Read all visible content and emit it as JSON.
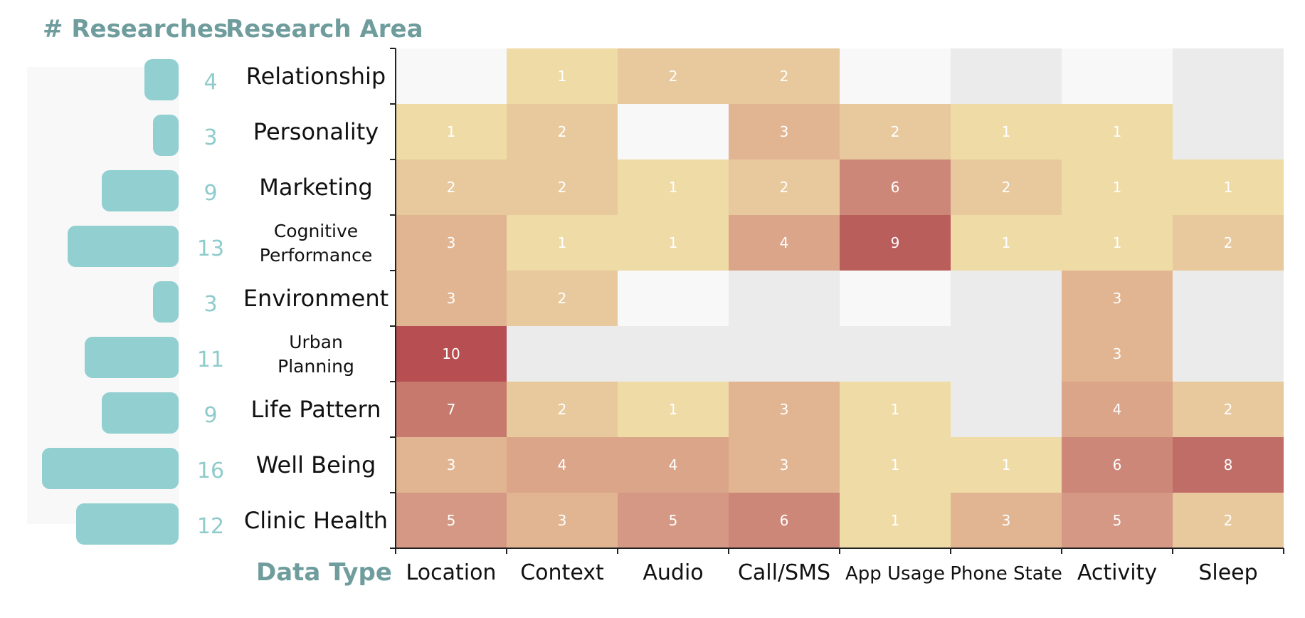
{
  "headers": {
    "researches": "# Researches",
    "research_area": "Research Area",
    "data_type": "Data Type"
  },
  "colors": {
    "bar": "#92cfd1",
    "bar_panel": "#f8f8f8",
    "header": "#6f9c9c",
    "count": "#8fcbcb",
    "empty_light": "#f8f8f8",
    "empty_dark": "#ebebeb",
    "scale": [
      "#efdba6",
      "#e8c99d",
      "#e2b592",
      "#dba58a",
      "#d49884",
      "#cc8778",
      "#c7796d",
      "#c06d68",
      "#ba5e5c",
      "#b74e51"
    ]
  },
  "chart_data": {
    "type": "heatmap",
    "xlabel": "Data Type",
    "ylabel": "Research Area",
    "rows": [
      {
        "label_lines": [
          "Relationship"
        ],
        "count": "4"
      },
      {
        "label_lines": [
          "Personality"
        ],
        "count": "3"
      },
      {
        "label_lines": [
          "Marketing"
        ],
        "count": "9"
      },
      {
        "label_lines": [
          "Cognitive",
          "Performance"
        ],
        "count": "13"
      },
      {
        "label_lines": [
          "Environment"
        ],
        "count": "3"
      },
      {
        "label_lines": [
          "Urban",
          "Planning"
        ],
        "count": "11"
      },
      {
        "label_lines": [
          "Life Pattern"
        ],
        "count": "9"
      },
      {
        "label_lines": [
          "Well Being"
        ],
        "count": "16"
      },
      {
        "label_lines": [
          "Clinic Health"
        ],
        "count": "12"
      }
    ],
    "columns": [
      "Location",
      "Context",
      "Audio",
      "Call/SMS",
      "App Usage",
      "Phone State",
      "Activity",
      "Sleep"
    ],
    "values": [
      [
        null,
        1,
        2,
        2,
        null,
        null,
        null,
        null
      ],
      [
        1,
        2,
        null,
        3,
        2,
        1,
        1,
        null
      ],
      [
        2,
        2,
        1,
        2,
        6,
        2,
        1,
        1
      ],
      [
        3,
        1,
        1,
        4,
        9,
        1,
        1,
        2
      ],
      [
        3,
        2,
        null,
        null,
        null,
        null,
        3,
        null
      ],
      [
        10,
        null,
        null,
        null,
        null,
        null,
        3,
        null
      ],
      [
        7,
        2,
        1,
        3,
        1,
        null,
        4,
        2
      ],
      [
        3,
        4,
        4,
        3,
        1,
        1,
        6,
        8
      ],
      [
        5,
        3,
        5,
        6,
        1,
        3,
        5,
        2
      ]
    ],
    "empty_shade": [
      [
        "light",
        null,
        null,
        null,
        "light",
        "dark",
        "light",
        "dark"
      ],
      [
        null,
        null,
        "light",
        null,
        null,
        null,
        null,
        "dark"
      ],
      [
        null,
        null,
        null,
        null,
        null,
        null,
        null,
        null
      ],
      [
        null,
        null,
        null,
        null,
        null,
        null,
        null,
        null
      ],
      [
        null,
        null,
        "light",
        "dark",
        "light",
        "dark",
        null,
        "dark"
      ],
      [
        null,
        "dark",
        "dark",
        "dark",
        "dark",
        "dark",
        null,
        "dark"
      ],
      [
        null,
        null,
        null,
        null,
        null,
        "dark",
        null,
        null
      ],
      [
        null,
        null,
        null,
        null,
        null,
        null,
        null,
        null
      ],
      [
        null,
        null,
        null,
        null,
        null,
        null,
        null,
        null
      ]
    ],
    "bar_counts": [
      4,
      3,
      9,
      13,
      3,
      11,
      9,
      16,
      12
    ],
    "bar_max": 16,
    "legend": "none",
    "grid": false
  }
}
